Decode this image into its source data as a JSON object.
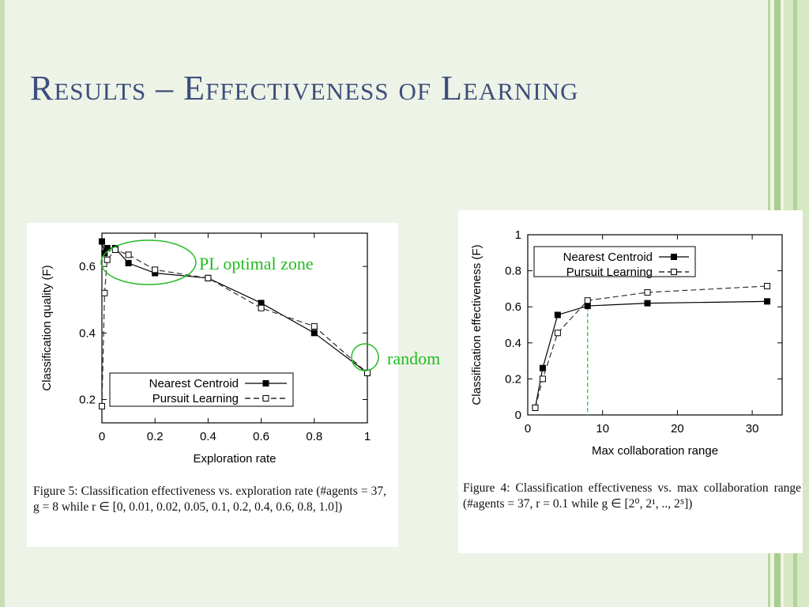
{
  "slide": {
    "title": "Results – Effectiveness of Learning",
    "annotations": {
      "pl_optimal_zone": "PL optimal zone",
      "random": "random"
    },
    "accent_color": "#22bb22",
    "title_color": "#3e4f7a"
  },
  "chart_data": [
    {
      "type": "line",
      "xlabel": "Exploration rate",
      "ylabel": "Classification quality (F)",
      "xlim": [
        0,
        1
      ],
      "ylim": [
        0.13,
        0.7
      ],
      "xticks": [
        "0",
        "0.2",
        "0.4",
        "0.6",
        "0.8",
        "1"
      ],
      "yticks": [
        "0.2",
        "0.4",
        "0.6"
      ],
      "grid": false,
      "legend_position": "bottom-left",
      "series": [
        {
          "name": "Nearest Centroid",
          "marker": "filled-square",
          "line": "solid",
          "x": [
            0,
            0.01,
            0.02,
            0.05,
            0.1,
            0.2,
            0.4,
            0.6,
            0.8,
            1.0
          ],
          "y": [
            0.675,
            0.64,
            0.655,
            0.655,
            0.61,
            0.58,
            0.565,
            0.49,
            0.4,
            0.28
          ]
        },
        {
          "name": "Pursuit Learning",
          "marker": "open-square",
          "line": "dashed",
          "x": [
            0,
            0.01,
            0.02,
            0.05,
            0.1,
            0.2,
            0.4,
            0.6,
            0.8,
            1.0
          ],
          "y": [
            0.18,
            0.52,
            0.62,
            0.65,
            0.635,
            0.59,
            0.565,
            0.475,
            0.42,
            0.28
          ]
        }
      ],
      "caption": "Figure 5: Classification effectiveness vs. exploration rate (#agents = 37, g = 8 while r ∈ [0, 0.01, 0.02, 0.05, 0.1, 0.2, 0.4, 0.6, 0.8, 1.0])"
    },
    {
      "type": "line",
      "xlabel": "Max collaboration range",
      "ylabel": "Classification effectiveness (F)",
      "xlim": [
        0,
        34
      ],
      "ylim": [
        0,
        1
      ],
      "xticks": [
        "0",
        "10",
        "20",
        "30"
      ],
      "yticks": [
        "0",
        "0.2",
        "0.4",
        "0.6",
        "0.8",
        "1"
      ],
      "grid": false,
      "legend_position": "top-left",
      "vertical_marker_x": 8,
      "series": [
        {
          "name": "Nearest Centroid",
          "marker": "filled-square",
          "line": "solid",
          "x": [
            1,
            2,
            4,
            8,
            16,
            32
          ],
          "y": [
            0.04,
            0.26,
            0.555,
            0.605,
            0.62,
            0.63
          ]
        },
        {
          "name": "Pursuit Learning",
          "marker": "open-square",
          "line": "dashed",
          "x": [
            1,
            2,
            4,
            8,
            16,
            32
          ],
          "y": [
            0.04,
            0.2,
            0.455,
            0.635,
            0.68,
            0.715
          ]
        }
      ],
      "caption": "Figure 4: Classification effectiveness vs. max collaboration range (#agents = 37, r = 0.1 while g ∈ [2⁰, 2¹, .., 2⁵])"
    }
  ]
}
